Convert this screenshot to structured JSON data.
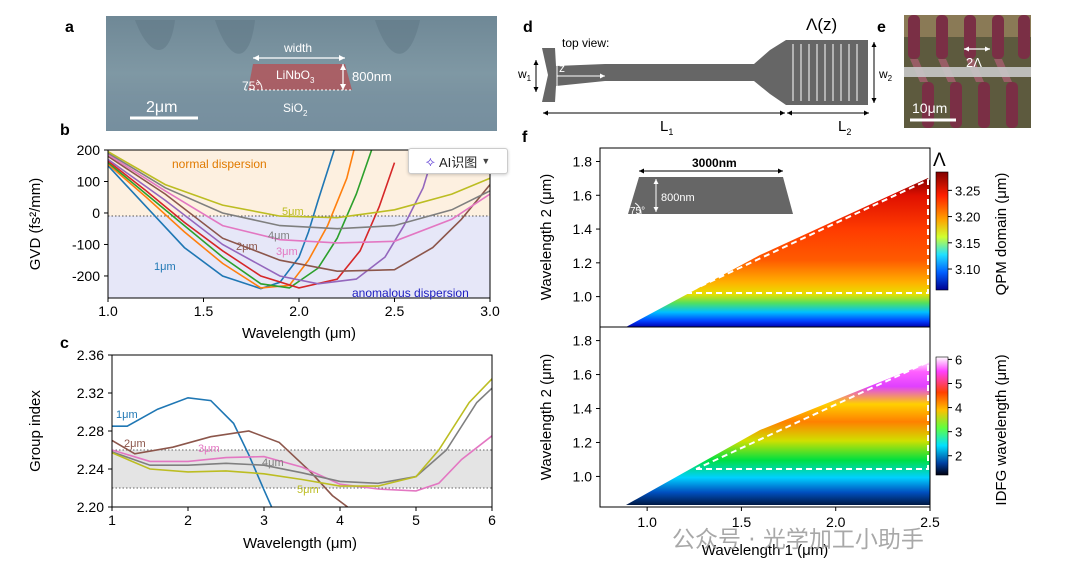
{
  "panels": {
    "a": "a",
    "b": "b",
    "c": "c",
    "d": "d",
    "e": "e",
    "f": "f"
  },
  "panel_a": {
    "width": "width",
    "material": "LiNbO",
    "material_sub": "3",
    "height": "800nm",
    "angle": "75°",
    "substrate": "SiO",
    "substrate_sub": "2",
    "scale": "2μm"
  },
  "panel_d": {
    "view": "top view:",
    "w1": "w",
    "w1_sub": "1",
    "w2": "w",
    "w2_sub": "2",
    "z": "z",
    "lambda": "Λ(z)",
    "L1": "L",
    "L1_sub": "1",
    "L2": "L",
    "L2_sub": "2"
  },
  "panel_e": {
    "period": "2Λ",
    "scale": "10μm"
  },
  "ai_button": {
    "label": "AI识图"
  },
  "watermark": {
    "text": "公众号 · 光学加工小助手"
  },
  "colors": {
    "normal_bg": "#fdf0e0",
    "anom_bg": "#e6e7f8",
    "band": "#e4e4e4"
  },
  "chart_data": [
    {
      "panel": "b",
      "type": "line",
      "xlabel": "Wavelength (μm)",
      "ylabel": "GVD (fs²/mm)",
      "xlim": [
        1.0,
        3.0
      ],
      "ylim": [
        -270,
        200
      ],
      "xticks": [
        "1.0",
        "1.5",
        "2.0",
        "2.5",
        "3.0"
      ],
      "yticks": [
        "200",
        "100",
        "0",
        "-100",
        "-200"
      ],
      "region_labels": {
        "normal": "normal dispersion",
        "anomalous": "anomalous dispersion"
      },
      "series": [
        {
          "name": "1μm",
          "color": "#1f77b4",
          "x": [
            1.0,
            1.2,
            1.4,
            1.6,
            1.8,
            1.9,
            2.0,
            2.05,
            2.1,
            2.2
          ],
          "y": [
            150,
            20,
            -110,
            -200,
            -240,
            -220,
            -140,
            -60,
            40,
            230
          ]
        },
        {
          "name": "",
          "color": "#ff7f0e",
          "x": [
            1.0,
            1.2,
            1.4,
            1.6,
            1.8,
            1.95,
            2.05,
            2.15,
            2.25,
            2.3
          ],
          "y": [
            155,
            50,
            -60,
            -160,
            -238,
            -230,
            -150,
            -40,
            110,
            230
          ]
        },
        {
          "name": "",
          "color": "#2ca02c",
          "x": [
            1.0,
            1.2,
            1.4,
            1.6,
            1.8,
            1.95,
            2.1,
            2.2,
            2.3,
            2.38
          ],
          "y": [
            160,
            60,
            -40,
            -140,
            -225,
            -238,
            -175,
            -80,
            60,
            200
          ]
        },
        {
          "name": "",
          "color": "#d62728",
          "x": [
            1.0,
            1.2,
            1.4,
            1.6,
            1.8,
            2.0,
            2.2,
            2.32,
            2.42,
            2.5
          ],
          "y": [
            165,
            70,
            -30,
            -120,
            -200,
            -238,
            -210,
            -120,
            20,
            160
          ]
        },
        {
          "name": "",
          "color": "#9467bd",
          "x": [
            1.0,
            1.3,
            1.6,
            1.9,
            2.1,
            2.3,
            2.45,
            2.55,
            2.65,
            2.7
          ],
          "y": [
            170,
            40,
            -100,
            -200,
            -225,
            -210,
            -140,
            -40,
            80,
            180
          ]
        },
        {
          "name": "2μm",
          "color": "#8c564b",
          "x": [
            1.0,
            1.3,
            1.6,
            1.9,
            2.2,
            2.5,
            2.7,
            2.85,
            3.0
          ],
          "y": [
            180,
            60,
            -80,
            -150,
            -185,
            -180,
            -110,
            -20,
            90
          ]
        },
        {
          "name": "3μm",
          "color": "#e377c2",
          "x": [
            1.0,
            1.3,
            1.6,
            1.9,
            2.2,
            2.5,
            2.8,
            3.0
          ],
          "y": [
            185,
            70,
            -40,
            -85,
            -95,
            -90,
            -20,
            60
          ]
        },
        {
          "name": "4μm",
          "color": "#7f7f7f",
          "x": [
            1.0,
            1.3,
            1.6,
            1.9,
            2.2,
            2.5,
            2.8,
            3.0
          ],
          "y": [
            190,
            80,
            0,
            -40,
            -50,
            -40,
            10,
            70
          ]
        },
        {
          "name": "5μm",
          "color": "#bcbd22",
          "x": [
            1.0,
            1.3,
            1.6,
            1.9,
            2.2,
            2.5,
            2.8,
            3.0
          ],
          "y": [
            195,
            90,
            25,
            -10,
            -15,
            10,
            60,
            110
          ]
        }
      ]
    },
    {
      "panel": "c",
      "type": "line",
      "xlabel": "Wavelength (μm)",
      "ylabel": "Group index",
      "xlim": [
        1,
        6
      ],
      "ylim": [
        2.2,
        2.36
      ],
      "xticks": [
        "1",
        "2",
        "3",
        "4",
        "5",
        "6"
      ],
      "yticks": [
        "2.36",
        "2.32",
        "2.28",
        "2.24",
        "2.20"
      ],
      "band": [
        2.22,
        2.26
      ],
      "series": [
        {
          "name": "1μm",
          "color": "#1f77b4",
          "x": [
            1.0,
            1.2,
            1.6,
            2.0,
            2.3,
            2.6,
            2.8,
            3.0,
            3.1
          ],
          "y": [
            2.285,
            2.285,
            2.303,
            2.315,
            2.312,
            2.288,
            2.255,
            2.218,
            2.2
          ]
        },
        {
          "name": "2μm",
          "color": "#8c564b",
          "x": [
            1.0,
            1.3,
            1.8,
            2.3,
            2.8,
            3.2,
            3.6,
            3.9,
            4.1
          ],
          "y": [
            2.27,
            2.256,
            2.263,
            2.274,
            2.28,
            2.268,
            2.238,
            2.212,
            2.2
          ]
        },
        {
          "name": "3μm",
          "color": "#e377c2",
          "x": [
            1.0,
            1.5,
            2.0,
            2.5,
            3.0,
            3.5,
            4.0,
            4.5,
            5.0,
            5.3,
            5.6,
            6.0
          ],
          "y": [
            2.26,
            2.248,
            2.248,
            2.252,
            2.253,
            2.242,
            2.224,
            2.219,
            2.217,
            2.225,
            2.25,
            2.275
          ]
        },
        {
          "name": "4μm",
          "color": "#7f7f7f",
          "x": [
            1.0,
            1.5,
            2.0,
            2.5,
            3.0,
            3.5,
            4.0,
            4.5,
            5.0,
            5.4,
            5.8,
            6.0
          ],
          "y": [
            2.258,
            2.244,
            2.244,
            2.246,
            2.244,
            2.236,
            2.227,
            2.225,
            2.232,
            2.26,
            2.31,
            2.325
          ]
        },
        {
          "name": "5μm",
          "color": "#bcbd22",
          "x": [
            1.0,
            1.5,
            2.0,
            2.5,
            3.0,
            3.5,
            4.0,
            4.5,
            5.0,
            5.3,
            5.7,
            6.0
          ],
          "y": [
            2.257,
            2.24,
            2.237,
            2.238,
            2.235,
            2.229,
            2.222,
            2.222,
            2.232,
            2.26,
            2.31,
            2.335
          ]
        }
      ]
    },
    {
      "panel": "f",
      "type": "heatmap",
      "xlabel": "Wavelength 1 (μm)",
      "xlim": [
        0.75,
        2.5
      ],
      "xticks": [
        "1.0",
        "1.5",
        "2.0",
        "2.5"
      ],
      "top": {
        "ylabel": "Wavelength 2 (μm)",
        "ylim": [
          0.82,
          1.88
        ],
        "yticks": [
          "1.8",
          "1.6",
          "1.4",
          "1.2",
          "1.0"
        ],
        "colorbar_label": "QPM domain (μm)",
        "colorbar_title": "Λ",
        "colorbar_ticks": [
          "3.25",
          "3.20",
          "3.15",
          "3.10"
        ],
        "inset": {
          "width": "3000nm",
          "height": "800nm",
          "angle": "75°"
        }
      },
      "bottom": {
        "ylabel": "Wavelength 2 (μm)",
        "ylim": [
          0.82,
          1.88
        ],
        "yticks": [
          "1.8",
          "1.6",
          "1.4",
          "1.2",
          "1.0"
        ],
        "colorbar_label": "IDFG wavelength (μm)",
        "colorbar_ticks": [
          "6",
          "5",
          "4",
          "3",
          "2"
        ]
      }
    }
  ]
}
